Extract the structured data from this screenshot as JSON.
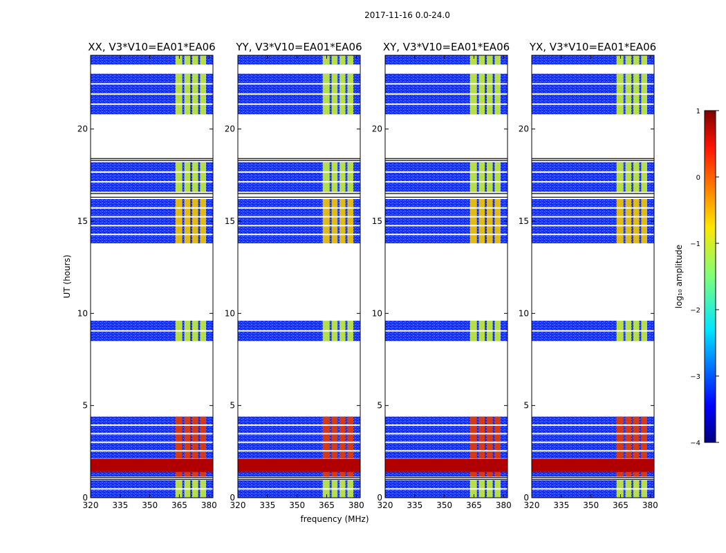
{
  "chart_data": {
    "type": "heatmap",
    "title": "2017-11-16 0.0-24.0",
    "xlabel": "frequency (MHz)",
    "ylabel": "UT (hours)",
    "xlim": [
      320,
      382
    ],
    "ylim": [
      0,
      24
    ],
    "xticks": [
      "320",
      "335",
      "350",
      "365",
      "380"
    ],
    "xtick_values": [
      320,
      335,
      350,
      365,
      380
    ],
    "yticks": [
      "0",
      "5",
      "10",
      "15",
      "20"
    ],
    "ytick_values": [
      0,
      5,
      10,
      15,
      20
    ],
    "rfi_bands_mhz": [
      [
        363,
        366.5
      ],
      [
        367.5,
        370.5
      ],
      [
        371.5,
        374.5
      ],
      [
        375.5,
        378.5
      ]
    ],
    "observed_blocks_hours": [
      [
        0.0,
        0.95
      ],
      [
        1.15,
        4.4
      ],
      [
        8.5,
        9.6
      ],
      [
        13.8,
        16.2
      ],
      [
        16.6,
        18.2
      ],
      [
        20.8,
        23.0
      ],
      [
        23.5,
        24.0
      ]
    ],
    "panels": [
      {
        "title": "XX, V3*V10=EA01*EA06"
      },
      {
        "title": "YY, V3*V10=EA01*EA06"
      },
      {
        "title": "XY, V3*V10=EA01*EA06"
      },
      {
        "title": "YX, V3*V10=EA01*EA06"
      }
    ],
    "colorbar": {
      "label": "log₁₀ amplitude",
      "ticks": [
        "1",
        "0",
        "−1",
        "−2",
        "−3",
        "−4"
      ],
      "tick_values": [
        1,
        0,
        -1,
        -2,
        -3,
        -4
      ],
      "range": [
        -4,
        1
      ],
      "colormap": "jet"
    }
  }
}
